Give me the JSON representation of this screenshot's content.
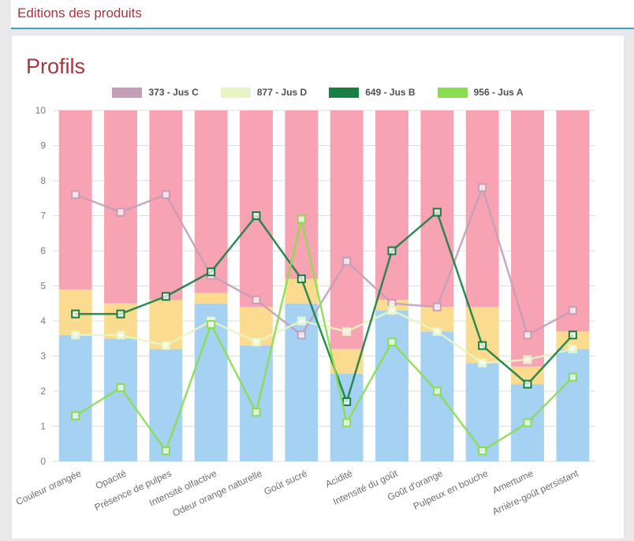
{
  "header": {
    "title": "Editions des produits"
  },
  "panel": {
    "heading": "Profils"
  },
  "chart_data": {
    "type": "line",
    "title": "",
    "xlabel": "",
    "ylabel": "",
    "ylim": [
      0,
      10
    ],
    "yticks": [
      0,
      1,
      2,
      3,
      4,
      5,
      6,
      7,
      8,
      9,
      10
    ],
    "grid": true,
    "legend_position": "top",
    "categories": [
      "Couleur orangée",
      "Opacité",
      "Présence de pulpes",
      "Intensité olfactive",
      "Odeur orange naturelle",
      "Goût sucré",
      "Acidité",
      "Intensité du goût",
      "Goût d'orange",
      "Pulpeux en bouche",
      "Amertume",
      "Arrière-goût persistant"
    ],
    "series": [
      {
        "name": "373 - Jus C",
        "color": "#c49eb6",
        "values": [
          7.6,
          7.1,
          7.6,
          5.3,
          4.6,
          3.6,
          5.7,
          4.5,
          4.4,
          7.8,
          3.6,
          4.3
        ]
      },
      {
        "name": "877 - Jus D",
        "color": "#e6f5c3",
        "values": [
          3.6,
          3.6,
          3.3,
          4.0,
          3.4,
          4.0,
          3.7,
          4.3,
          3.7,
          2.8,
          2.9,
          3.2
        ]
      },
      {
        "name": "649 - Jus B",
        "color": "#177f42",
        "values": [
          4.2,
          4.2,
          4.7,
          5.4,
          7.0,
          5.2,
          1.7,
          6.0,
          7.1,
          3.3,
          2.2,
          3.6
        ]
      },
      {
        "name": "956 - Jus A",
        "color": "#8add4f",
        "values": [
          1.3,
          2.1,
          0.3,
          3.9,
          1.4,
          6.9,
          1.1,
          3.4,
          2.0,
          0.3,
          1.1,
          2.4
        ]
      }
    ],
    "background_bands": {
      "colors": {
        "low": "#a5d2f3",
        "mid": "#fbdb8f",
        "high": "#f7a3b3"
      },
      "boundaries": [
        [
          3.6,
          4.9
        ],
        [
          3.5,
          4.5
        ],
        [
          3.2,
          4.6
        ],
        [
          4.5,
          4.8
        ],
        [
          3.3,
          4.4
        ],
        [
          4.5,
          5.2
        ],
        [
          2.5,
          3.2
        ],
        [
          4.3,
          4.6
        ],
        [
          3.7,
          4.4
        ],
        [
          2.8,
          4.4
        ],
        [
          2.2,
          2.7
        ],
        [
          3.2,
          3.7
        ]
      ]
    }
  }
}
